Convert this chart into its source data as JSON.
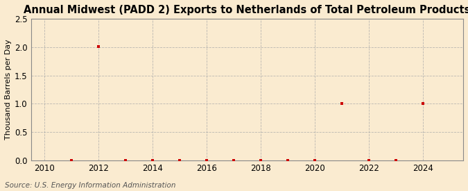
{
  "title": "Annual Midwest (PADD 2) Exports to Netherlands of Total Petroleum Products",
  "ylabel": "Thousand Barrels per Day",
  "source": "Source: U.S. Energy Information Administration",
  "background_color": "#faebd0",
  "plot_bg_color": "#faebd0",
  "point_color": "#cc0000",
  "grid_color": "#aaaaaa",
  "xlim": [
    2009.5,
    2025.5
  ],
  "ylim": [
    0.0,
    2.5
  ],
  "xticks": [
    2010,
    2012,
    2014,
    2016,
    2018,
    2020,
    2022,
    2024
  ],
  "yticks": [
    0.0,
    0.5,
    1.0,
    1.5,
    2.0,
    2.5
  ],
  "data_x": [
    2011,
    2012,
    2013,
    2014,
    2015,
    2016,
    2017,
    2018,
    2019,
    2020,
    2021,
    2022,
    2023,
    2024
  ],
  "data_y": [
    0.0,
    2.01,
    0.0,
    0.0,
    0.0,
    0.0,
    0.0,
    0.0,
    0.0,
    0.0,
    1.0,
    0.0,
    0.0,
    1.0
  ],
  "title_fontsize": 10.5,
  "label_fontsize": 8,
  "tick_fontsize": 8.5,
  "source_fontsize": 7.5
}
